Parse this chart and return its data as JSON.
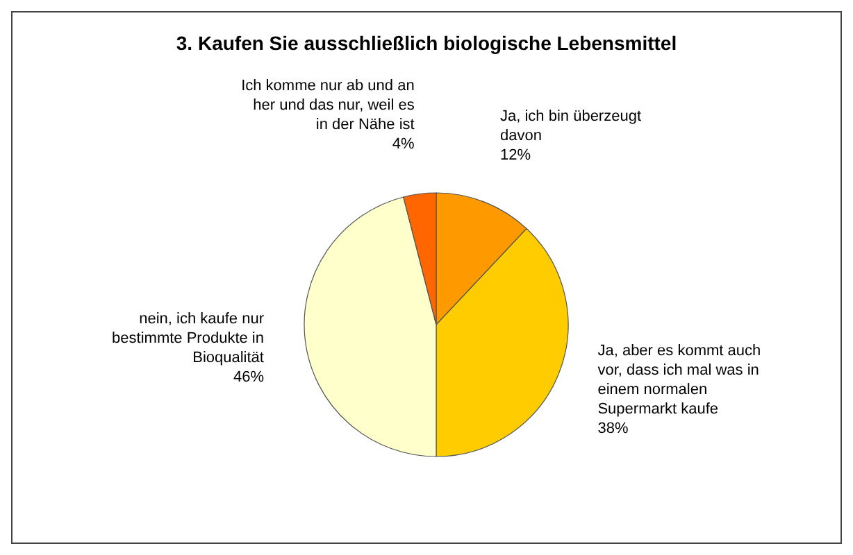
{
  "chart_data": {
    "type": "pie",
    "title": "3. Kaufen Sie ausschließlich biologische Lebensmittel",
    "categories": [
      "Ja, ich bin überzeugt davon",
      "Ja, aber es kommt auch vor, dass ich mal was in einem normalen Supermarkt kaufe",
      "nein, ich kaufe nur bestimmte Produkte in Bioqualität",
      "Ich komme nur ab und an her und das nur, weil es in der Nähe ist"
    ],
    "values": [
      12,
      38,
      46,
      4
    ],
    "value_labels": [
      "12%",
      "38%",
      "46%",
      "4%"
    ],
    "colors": [
      "#ff9900",
      "#ffcc00",
      "#ffffcc",
      "#ff6600"
    ],
    "legend": false
  }
}
